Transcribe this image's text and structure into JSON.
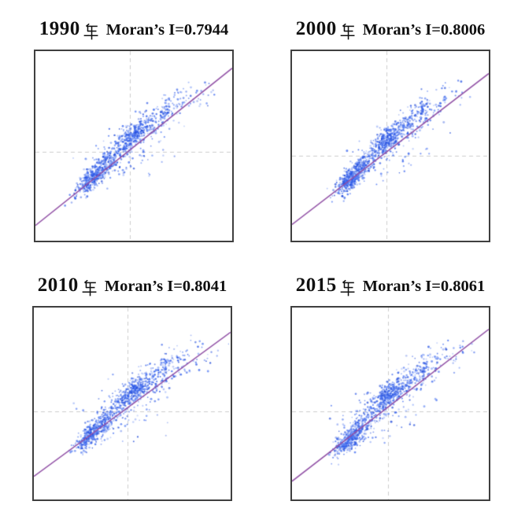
{
  "style": {
    "background": "#ffffff",
    "frame_color": "#3f3f3f",
    "crosshair_color": "#cccccc",
    "regression_line_color": "#9252a6",
    "point_colors": [
      "#2b57e6",
      "#1f49d9",
      "#3e6af0",
      "#5d84f4"
    ]
  },
  "chart_data": [
    {
      "type": "scatter",
      "title": "1990年 Moran’s I=0.7944",
      "year": "1990",
      "year_suffix": "年",
      "moran_label": "Moran’s I=0.7944",
      "moran_i": 0.7944,
      "axes": {
        "ticks": false,
        "tick_labels": false,
        "grid": false
      },
      "crosshair": {
        "x": 0.48,
        "y": 0.53
      },
      "regression_line": {
        "x1": 0,
        "y1": 0.92,
        "x2": 1,
        "y2": 0.09
      },
      "seed": 19901,
      "clusters": [
        {
          "cx": 0.295,
          "cy": 0.665,
          "sx": 0.042,
          "sy": 0.026,
          "tilt": -0.72,
          "n": 320
        },
        {
          "cx": 0.372,
          "cy": 0.578,
          "sx": 0.05,
          "sy": 0.032,
          "tilt": -0.72,
          "n": 150
        },
        {
          "cx": 0.492,
          "cy": 0.452,
          "sx": 0.042,
          "sy": 0.03,
          "tilt": -0.7,
          "n": 290
        },
        {
          "cx": 0.582,
          "cy": 0.392,
          "sx": 0.05,
          "sy": 0.042,
          "tilt": -0.6,
          "n": 110
        },
        {
          "cx": 0.672,
          "cy": 0.318,
          "sx": 0.065,
          "sy": 0.048,
          "tilt": -0.55,
          "n": 80
        },
        {
          "cx": 0.82,
          "cy": 0.245,
          "sx": 0.06,
          "sy": 0.05,
          "tilt": -0.3,
          "n": 26
        },
        {
          "cx": 0.665,
          "cy": 0.3,
          "sx": 0.004,
          "sy": 0.038,
          "tilt": 0,
          "n": 20
        },
        {
          "cx": 0.262,
          "cy": 0.685,
          "sx": 0.004,
          "sy": 0.045,
          "tilt": 0,
          "n": 16
        },
        {
          "cx": 0.5,
          "cy": 0.59,
          "sx": 0.09,
          "sy": 0.055,
          "tilt": -0.4,
          "n": 45
        },
        {
          "cx": 0.4,
          "cy": 0.5,
          "sx": 0.085,
          "sy": 0.05,
          "tilt": -0.5,
          "n": 45
        }
      ]
    },
    {
      "type": "scatter",
      "title": "2000年 Moran’s I=0.8006",
      "year": "2000",
      "year_suffix": "年",
      "moran_label": "Moran’s I=0.8006",
      "moran_i": 0.8006,
      "axes": {
        "ticks": false,
        "tick_labels": false,
        "grid": false
      },
      "crosshair": {
        "x": 0.478,
        "y": 0.55
      },
      "regression_line": {
        "x1": 0,
        "y1": 0.915,
        "x2": 1,
        "y2": 0.118
      },
      "seed": 20002,
      "clusters": [
        {
          "cx": 0.3,
          "cy": 0.675,
          "sx": 0.04,
          "sy": 0.026,
          "tilt": -0.72,
          "n": 340
        },
        {
          "cx": 0.375,
          "cy": 0.585,
          "sx": 0.05,
          "sy": 0.032,
          "tilt": -0.72,
          "n": 150
        },
        {
          "cx": 0.495,
          "cy": 0.455,
          "sx": 0.042,
          "sy": 0.03,
          "tilt": -0.7,
          "n": 300
        },
        {
          "cx": 0.585,
          "cy": 0.395,
          "sx": 0.05,
          "sy": 0.042,
          "tilt": -0.6,
          "n": 105
        },
        {
          "cx": 0.675,
          "cy": 0.32,
          "sx": 0.065,
          "sy": 0.048,
          "tilt": -0.55,
          "n": 85
        },
        {
          "cx": 0.8,
          "cy": 0.25,
          "sx": 0.06,
          "sy": 0.05,
          "tilt": -0.3,
          "n": 22
        },
        {
          "cx": 0.66,
          "cy": 0.305,
          "sx": 0.004,
          "sy": 0.038,
          "tilt": 0,
          "n": 20
        },
        {
          "cx": 0.268,
          "cy": 0.695,
          "sx": 0.004,
          "sy": 0.045,
          "tilt": 0,
          "n": 16
        },
        {
          "cx": 0.505,
          "cy": 0.595,
          "sx": 0.09,
          "sy": 0.055,
          "tilt": -0.4,
          "n": 42
        },
        {
          "cx": 0.405,
          "cy": 0.505,
          "sx": 0.085,
          "sy": 0.05,
          "tilt": -0.5,
          "n": 42
        }
      ]
    },
    {
      "type": "scatter",
      "title": "2010年 Moran’s I=0.8041",
      "year": "2010",
      "year_suffix": "年",
      "moran_label": "Moran’s I=0.8041",
      "moran_i": 0.8041,
      "axes": {
        "ticks": false,
        "tick_labels": false,
        "grid": false
      },
      "crosshair": {
        "x": 0.476,
        "y": 0.54
      },
      "regression_line": {
        "x1": 0,
        "y1": 0.88,
        "x2": 1,
        "y2": 0.128
      },
      "seed": 20103,
      "clusters": [
        {
          "cx": 0.295,
          "cy": 0.66,
          "sx": 0.042,
          "sy": 0.027,
          "tilt": -0.72,
          "n": 320
        },
        {
          "cx": 0.372,
          "cy": 0.575,
          "sx": 0.05,
          "sy": 0.032,
          "tilt": -0.72,
          "n": 150
        },
        {
          "cx": 0.49,
          "cy": 0.45,
          "sx": 0.043,
          "sy": 0.031,
          "tilt": -0.7,
          "n": 290
        },
        {
          "cx": 0.585,
          "cy": 0.39,
          "sx": 0.052,
          "sy": 0.044,
          "tilt": -0.6,
          "n": 130
        },
        {
          "cx": 0.678,
          "cy": 0.315,
          "sx": 0.066,
          "sy": 0.05,
          "tilt": -0.55,
          "n": 95
        },
        {
          "cx": 0.83,
          "cy": 0.245,
          "sx": 0.06,
          "sy": 0.05,
          "tilt": -0.3,
          "n": 28
        },
        {
          "cx": 0.668,
          "cy": 0.298,
          "sx": 0.004,
          "sy": 0.038,
          "tilt": 0,
          "n": 20
        },
        {
          "cx": 0.262,
          "cy": 0.68,
          "sx": 0.004,
          "sy": 0.046,
          "tilt": 0,
          "n": 16
        },
        {
          "cx": 0.5,
          "cy": 0.588,
          "sx": 0.09,
          "sy": 0.056,
          "tilt": -0.4,
          "n": 45
        },
        {
          "cx": 0.4,
          "cy": 0.498,
          "sx": 0.086,
          "sy": 0.05,
          "tilt": -0.5,
          "n": 45
        }
      ]
    },
    {
      "type": "scatter",
      "title": "2015年 Moran’s I=0.8061",
      "year": "2015",
      "year_suffix": "年",
      "moran_label": "Moran’s I=0.8061",
      "moran_i": 0.8061,
      "axes": {
        "ticks": false,
        "tick_labels": false,
        "grid": false
      },
      "crosshair": {
        "x": 0.488,
        "y": 0.54
      },
      "regression_line": {
        "x1": 0,
        "y1": 0.905,
        "x2": 1,
        "y2": 0.113
      },
      "seed": 20154,
      "clusters": [
        {
          "cx": 0.298,
          "cy": 0.685,
          "sx": 0.041,
          "sy": 0.026,
          "tilt": -0.72,
          "n": 330
        },
        {
          "cx": 0.375,
          "cy": 0.588,
          "sx": 0.05,
          "sy": 0.032,
          "tilt": -0.72,
          "n": 150
        },
        {
          "cx": 0.492,
          "cy": 0.455,
          "sx": 0.043,
          "sy": 0.031,
          "tilt": -0.7,
          "n": 295
        },
        {
          "cx": 0.585,
          "cy": 0.395,
          "sx": 0.051,
          "sy": 0.043,
          "tilt": -0.6,
          "n": 115
        },
        {
          "cx": 0.68,
          "cy": 0.318,
          "sx": 0.066,
          "sy": 0.049,
          "tilt": -0.55,
          "n": 95
        },
        {
          "cx": 0.84,
          "cy": 0.248,
          "sx": 0.058,
          "sy": 0.05,
          "tilt": -0.3,
          "n": 30
        },
        {
          "cx": 0.668,
          "cy": 0.3,
          "sx": 0.004,
          "sy": 0.038,
          "tilt": 0,
          "n": 20
        },
        {
          "cx": 0.235,
          "cy": 0.71,
          "sx": 0.004,
          "sy": 0.05,
          "tilt": 0,
          "n": 16
        },
        {
          "cx": 0.502,
          "cy": 0.592,
          "sx": 0.09,
          "sy": 0.055,
          "tilt": -0.4,
          "n": 45
        },
        {
          "cx": 0.402,
          "cy": 0.502,
          "sx": 0.086,
          "sy": 0.05,
          "tilt": -0.5,
          "n": 45
        }
      ]
    }
  ]
}
